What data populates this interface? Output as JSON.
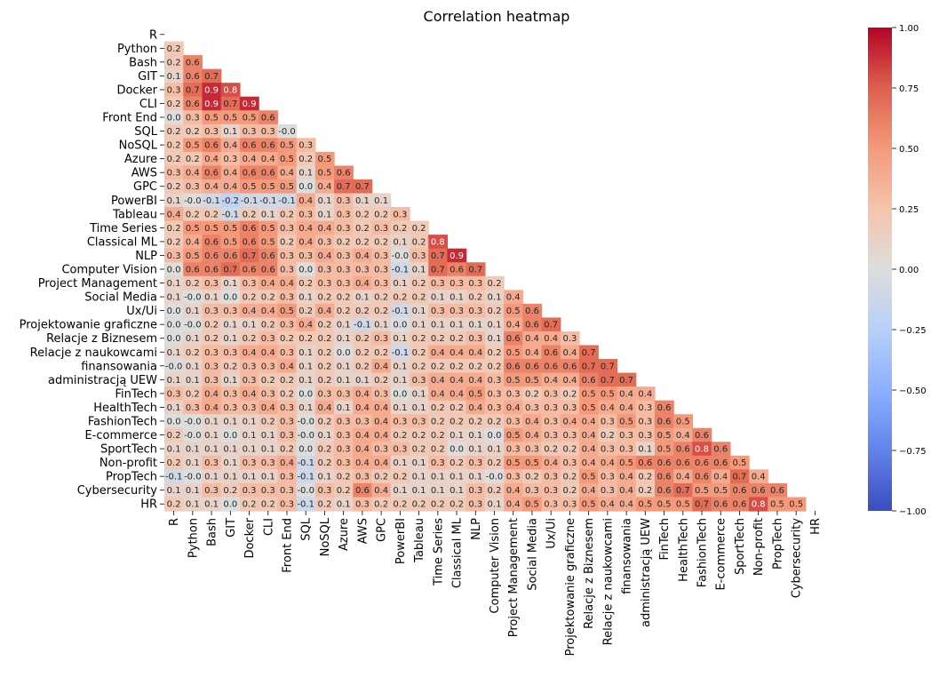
{
  "chart_data": {
    "type": "heatmap",
    "title": "Correlation heatmap",
    "colormap": "coolwarm",
    "vmin": -1.0,
    "vmax": 1.0,
    "mask": "upper-triangle-including-diagonal",
    "colorbar_ticks": [
      "1.00",
      "0.75",
      "0.50",
      "0.25",
      "0.00",
      "−0.25",
      "−0.50",
      "−0.75",
      "−1.00"
    ],
    "colorbar_tick_values": [
      1.0,
      0.75,
      0.5,
      0.25,
      0.0,
      -0.25,
      -0.5,
      -0.75,
      -1.0
    ],
    "labels": [
      "R",
      "Python",
      "Bash",
      "GIT",
      "Docker",
      "CLI",
      "Front End",
      "SQL",
      "NoSQL",
      "Azure",
      "AWS",
      "GPC",
      "PowerBI",
      "Tableau",
      "Time Series",
      "Classical ML",
      "NLP",
      "Computer Vision",
      "Project Management",
      "Social Media",
      "Ux/Ui",
      "Projektowanie graficzne",
      "Relacje z Biznesem",
      "Relacje z naukowcami",
      "finansowania",
      "administracją UEW",
      "FinTech",
      "HealthTech",
      "FashionTech",
      "E-commerce",
      "SportTech",
      "Non-profit",
      "PropTech",
      "Cybersecurity",
      "HR"
    ],
    "values": [
      [],
      [
        0.2
      ],
      [
        0.2,
        0.6
      ],
      [
        0.1,
        0.6,
        0.7
      ],
      [
        0.3,
        0.7,
        0.9,
        0.8
      ],
      [
        0.2,
        0.6,
        0.9,
        0.7,
        0.9
      ],
      [
        0.0,
        0.3,
        0.5,
        0.5,
        0.5,
        0.6
      ],
      [
        0.2,
        0.2,
        0.3,
        0.1,
        0.3,
        0.3,
        -0.0
      ],
      [
        0.2,
        0.5,
        0.6,
        0.4,
        0.6,
        0.6,
        0.5,
        0.3
      ],
      [
        0.2,
        0.2,
        0.4,
        0.3,
        0.4,
        0.4,
        0.5,
        0.2,
        0.5
      ],
      [
        0.3,
        0.4,
        0.6,
        0.4,
        0.6,
        0.6,
        0.4,
        0.1,
        0.5,
        0.6
      ],
      [
        0.2,
        0.3,
        0.4,
        0.4,
        0.5,
        0.5,
        0.5,
        0.0,
        0.4,
        0.7,
        0.7
      ],
      [
        0.1,
        -0.0,
        -0.1,
        -0.2,
        -0.1,
        -0.1,
        -0.1,
        0.4,
        0.1,
        0.3,
        0.1,
        0.1
      ],
      [
        0.4,
        0.2,
        0.2,
        -0.1,
        0.2,
        0.1,
        0.2,
        0.3,
        0.1,
        0.3,
        0.2,
        0.2,
        0.3
      ],
      [
        0.2,
        0.5,
        0.5,
        0.5,
        0.6,
        0.5,
        0.3,
        0.4,
        0.4,
        0.3,
        0.2,
        0.3,
        0.2,
        0.2
      ],
      [
        0.2,
        0.4,
        0.6,
        0.5,
        0.6,
        0.5,
        0.2,
        0.4,
        0.3,
        0.2,
        0.2,
        0.2,
        0.1,
        0.2,
        0.8
      ],
      [
        0.3,
        0.5,
        0.6,
        0.6,
        0.7,
        0.6,
        0.3,
        0.3,
        0.4,
        0.3,
        0.4,
        0.3,
        -0.0,
        0.3,
        0.7,
        0.9
      ],
      [
        0.0,
        0.6,
        0.6,
        0.7,
        0.6,
        0.6,
        0.3,
        0.0,
        0.3,
        0.3,
        0.3,
        0.3,
        -0.1,
        0.1,
        0.7,
        0.6,
        0.7
      ],
      [
        0.1,
        0.2,
        0.3,
        0.1,
        0.3,
        0.4,
        0.4,
        0.2,
        0.3,
        0.3,
        0.4,
        0.3,
        0.1,
        0.2,
        0.3,
        0.3,
        0.3,
        0.2
      ],
      [
        0.1,
        -0.0,
        0.1,
        0.0,
        0.2,
        0.2,
        0.3,
        0.1,
        0.2,
        0.2,
        0.1,
        0.2,
        0.2,
        0.2,
        0.1,
        0.1,
        0.2,
        0.1,
        0.4
      ],
      [
        0.0,
        0.1,
        0.3,
        0.3,
        0.4,
        0.4,
        0.5,
        0.2,
        0.4,
        0.2,
        0.2,
        0.2,
        -0.1,
        0.1,
        0.3,
        0.3,
        0.3,
        0.2,
        0.5,
        0.6
      ],
      [
        0.0,
        -0.0,
        0.2,
        0.1,
        0.1,
        0.2,
        0.3,
        0.4,
        0.2,
        0.1,
        -0.1,
        0.1,
        0.0,
        0.1,
        0.1,
        0.1,
        0.1,
        0.1,
        0.4,
        0.6,
        0.7
      ],
      [
        0.0,
        0.1,
        0.2,
        0.1,
        0.2,
        0.3,
        0.2,
        0.2,
        0.2,
        0.1,
        0.2,
        0.3,
        0.1,
        0.2,
        0.2,
        0.2,
        0.3,
        0.1,
        0.6,
        0.4,
        0.4,
        0.3
      ],
      [
        0.1,
        0.2,
        0.3,
        0.3,
        0.4,
        0.4,
        0.3,
        0.1,
        0.2,
        0.0,
        0.2,
        0.2,
        -0.1,
        0.2,
        0.4,
        0.4,
        0.4,
        0.2,
        0.5,
        0.4,
        0.6,
        0.4,
        0.7
      ],
      [
        -0.0,
        0.1,
        0.3,
        0.2,
        0.3,
        0.3,
        0.4,
        0.1,
        0.2,
        0.1,
        0.2,
        0.4,
        0.1,
        0.2,
        0.2,
        0.2,
        0.2,
        0.2,
        0.6,
        0.6,
        0.6,
        0.6,
        0.7,
        0.7
      ],
      [
        0.1,
        0.1,
        0.3,
        0.1,
        0.3,
        0.2,
        0.2,
        0.1,
        0.2,
        0.1,
        0.1,
        0.2,
        0.1,
        0.3,
        0.4,
        0.4,
        0.4,
        0.3,
        0.5,
        0.5,
        0.4,
        0.4,
        0.6,
        0.7,
        0.7
      ],
      [
        0.3,
        0.2,
        0.4,
        0.3,
        0.4,
        0.3,
        0.2,
        0.0,
        0.3,
        0.3,
        0.4,
        0.3,
        0.0,
        0.1,
        0.4,
        0.4,
        0.5,
        0.3,
        0.3,
        0.2,
        0.3,
        0.2,
        0.5,
        0.5,
        0.4,
        0.4
      ],
      [
        0.1,
        0.3,
        0.4,
        0.3,
        0.3,
        0.4,
        0.3,
        0.1,
        0.4,
        0.1,
        0.4,
        0.4,
        0.1,
        0.1,
        0.2,
        0.2,
        0.4,
        0.3,
        0.4,
        0.3,
        0.3,
        0.3,
        0.5,
        0.4,
        0.4,
        0.3,
        0.6
      ],
      [
        0.0,
        -0.0,
        0.1,
        0.1,
        0.1,
        0.2,
        0.3,
        -0.0,
        0.2,
        0.3,
        0.3,
        0.4,
        0.3,
        0.3,
        0.2,
        0.2,
        0.2,
        0.2,
        0.3,
        0.4,
        0.3,
        0.4,
        0.4,
        0.3,
        0.5,
        0.3,
        0.6,
        0.5
      ],
      [
        0.2,
        -0.0,
        0.1,
        0.0,
        0.1,
        0.1,
        0.3,
        -0.0,
        0.1,
        0.3,
        0.4,
        0.4,
        0.2,
        0.2,
        0.2,
        0.1,
        0.1,
        0.0,
        0.5,
        0.4,
        0.3,
        0.3,
        0.4,
        0.2,
        0.3,
        0.3,
        0.5,
        0.4,
        0.6
      ],
      [
        0.1,
        0.1,
        0.1,
        0.1,
        0.1,
        0.1,
        0.2,
        0.0,
        0.2,
        0.3,
        0.4,
        0.3,
        0.3,
        0.2,
        0.2,
        0.0,
        0.1,
        0.1,
        0.3,
        0.3,
        0.2,
        0.2,
        0.4,
        0.3,
        0.3,
        0.1,
        0.5,
        0.6,
        0.8,
        0.6
      ],
      [
        0.2,
        0.1,
        0.3,
        0.1,
        0.3,
        0.3,
        0.4,
        -0.1,
        0.2,
        0.3,
        0.4,
        0.4,
        0.1,
        0.1,
        0.3,
        0.2,
        0.3,
        0.2,
        0.5,
        0.5,
        0.4,
        0.3,
        0.4,
        0.4,
        0.5,
        0.6,
        0.6,
        0.6,
        0.6,
        0.6,
        0.5
      ],
      [
        -0.1,
        -0.0,
        0.1,
        0.1,
        0.1,
        0.1,
        0.3,
        -0.1,
        0.1,
        0.2,
        0.3,
        0.2,
        0.2,
        0.1,
        0.1,
        0.1,
        0.1,
        -0.0,
        0.3,
        0.2,
        0.3,
        0.2,
        0.5,
        0.3,
        0.4,
        0.2,
        0.6,
        0.4,
        0.6,
        0.4,
        0.7,
        0.4
      ],
      [
        0.1,
        0.1,
        0.3,
        0.2,
        0.3,
        0.3,
        0.3,
        -0.0,
        0.3,
        0.2,
        0.6,
        0.4,
        0.1,
        0.1,
        0.1,
        0.1,
        0.3,
        0.2,
        0.4,
        0.3,
        0.3,
        0.2,
        0.4,
        0.3,
        0.4,
        0.2,
        0.6,
        0.7,
        0.5,
        0.5,
        0.6,
        0.6,
        0.6
      ],
      [
        0.2,
        0.1,
        0.1,
        0.0,
        0.2,
        0.2,
        0.3,
        -0.1,
        0.2,
        0.1,
        0.3,
        0.2,
        0.2,
        0.2,
        0.2,
        0.2,
        0.3,
        0.1,
        0.4,
        0.5,
        0.3,
        0.3,
        0.5,
        0.4,
        0.4,
        0.5,
        0.5,
        0.5,
        0.7,
        0.6,
        0.6,
        0.8,
        0.5,
        0.5
      ]
    ]
  }
}
